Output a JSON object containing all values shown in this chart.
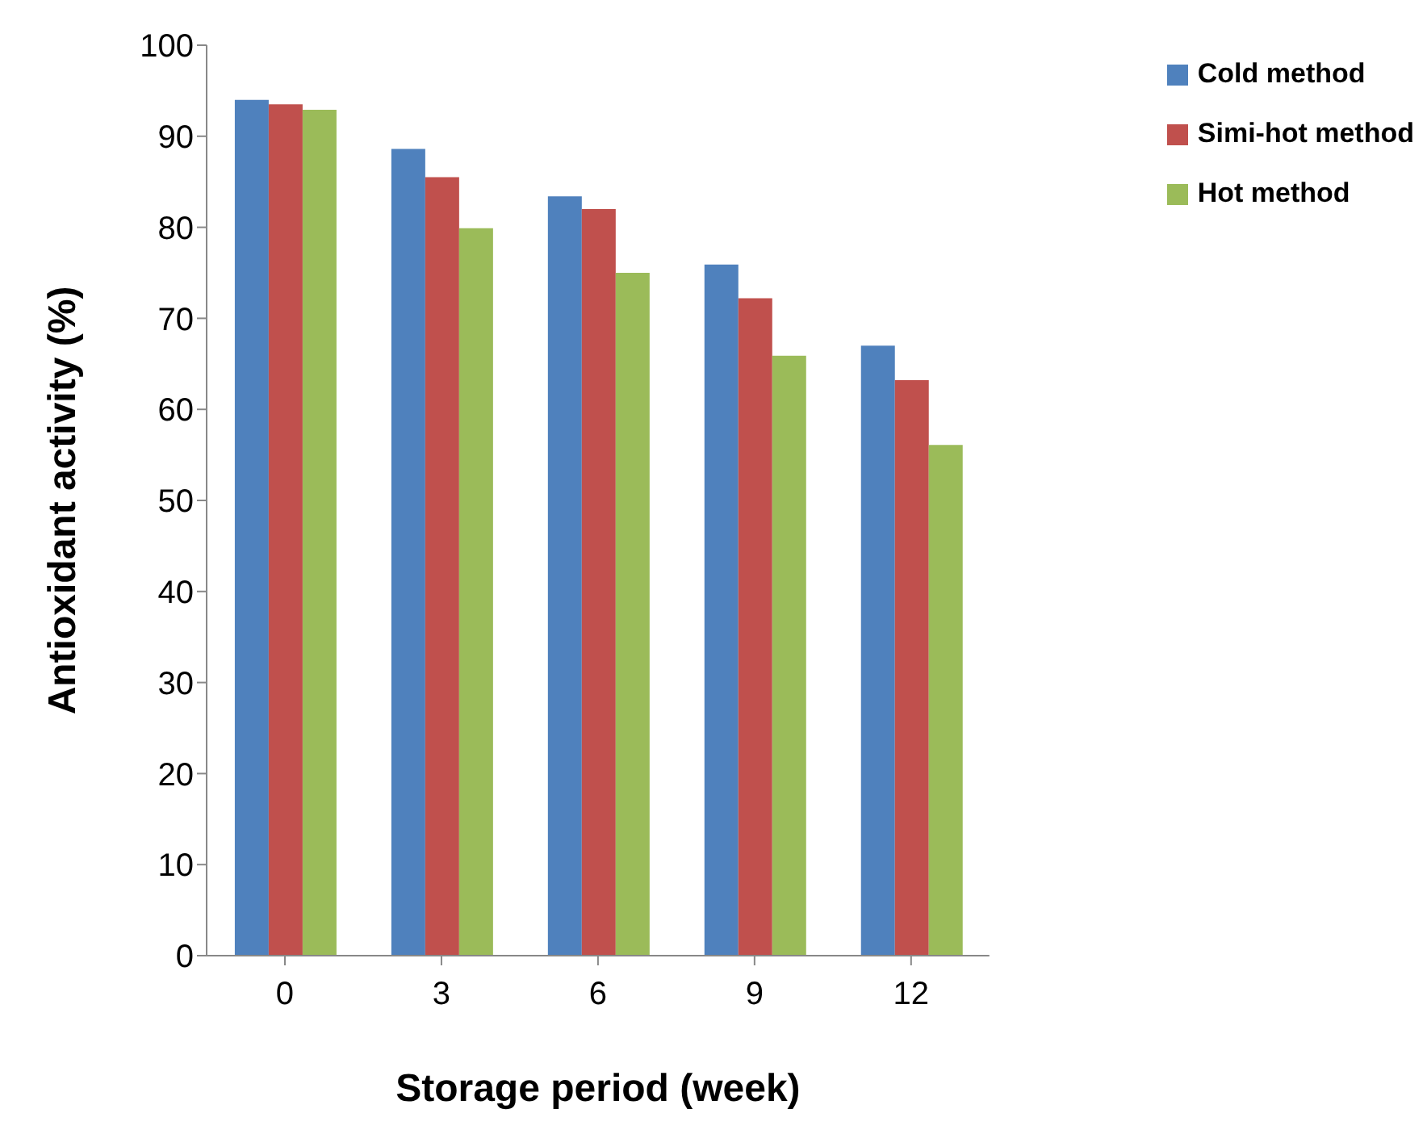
{
  "chart_data": {
    "type": "bar",
    "xlabel": "Storage period (week)",
    "ylabel": "Antioxidant activity (%)",
    "categories": [
      "0",
      "3",
      "6",
      "9",
      "12"
    ],
    "series": [
      {
        "name": "Cold method",
        "color": "#4f81bd",
        "values": [
          94,
          88.6,
          83.4,
          75.9,
          67
        ]
      },
      {
        "name": "Simi-hot method",
        "color": "#c0504d",
        "values": [
          93.5,
          85.5,
          82,
          72.2,
          63.2
        ]
      },
      {
        "name": "Hot method",
        "color": "#9bbb59",
        "values": [
          92.9,
          79.9,
          75,
          65.9,
          56.1
        ]
      }
    ],
    "ylim": [
      0,
      100
    ],
    "yticks": [
      0,
      10,
      20,
      30,
      40,
      50,
      60,
      70,
      80,
      90,
      100
    ],
    "grid": false,
    "legend": "top right"
  }
}
